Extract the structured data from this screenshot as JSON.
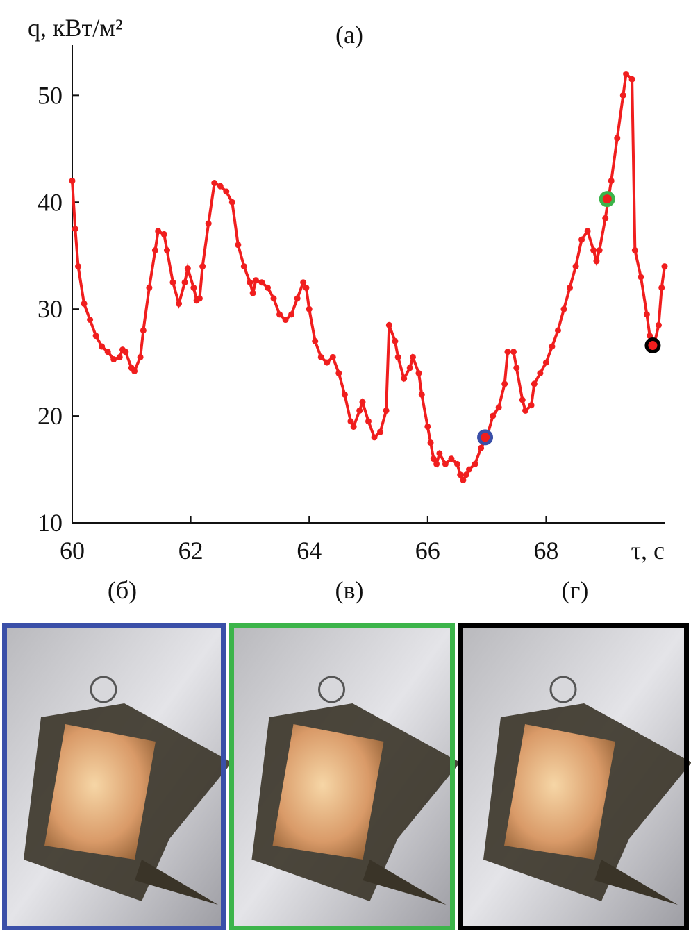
{
  "chart_data": {
    "type": "line",
    "title": "(а)",
    "y_label": "q, кВт/м²",
    "x_label": "τ, с",
    "x": [
      60.0,
      60.05,
      60.1,
      60.2,
      60.3,
      60.4,
      60.5,
      60.6,
      60.7,
      60.8,
      60.85,
      60.9,
      61.0,
      61.05,
      61.15,
      61.2,
      61.3,
      61.4,
      61.45,
      61.55,
      61.6,
      61.7,
      61.8,
      61.9,
      61.95,
      62.05,
      62.1,
      62.15,
      62.2,
      62.3,
      62.4,
      62.5,
      62.6,
      62.7,
      62.8,
      62.9,
      63.0,
      63.05,
      63.1,
      63.2,
      63.3,
      63.4,
      63.5,
      63.6,
      63.7,
      63.8,
      63.9,
      63.95,
      64.0,
      64.1,
      64.2,
      64.3,
      64.4,
      64.5,
      64.6,
      64.7,
      64.75,
      64.85,
      64.9,
      65.0,
      65.1,
      65.2,
      65.3,
      65.35,
      65.45,
      65.5,
      65.6,
      65.7,
      65.75,
      65.85,
      65.9,
      66.0,
      66.05,
      66.1,
      66.15,
      66.2,
      66.3,
      66.4,
      66.5,
      66.55,
      66.6,
      66.65,
      66.7,
      66.8,
      66.9,
      67.0,
      67.1,
      67.2,
      67.3,
      67.35,
      67.45,
      67.5,
      67.6,
      67.65,
      67.75,
      67.8,
      67.9,
      68.0,
      68.1,
      68.2,
      68.3,
      68.4,
      68.5,
      68.6,
      68.7,
      68.8,
      68.85,
      68.9,
      69.0,
      69.05,
      69.1,
      69.2,
      69.3,
      69.35,
      69.45,
      69.5,
      69.6,
      69.7,
      69.75,
      69.82,
      69.9,
      69.95,
      70.0
    ],
    "series": [
      {
        "color": "#f01e1e",
        "values": [
          42,
          37.5,
          34,
          30.5,
          29,
          27.5,
          26.5,
          26,
          25.3,
          25.5,
          26.2,
          26,
          24.5,
          24.2,
          25.5,
          28,
          32,
          35.5,
          37.3,
          37,
          35.5,
          32.5,
          30.5,
          32.5,
          33.8,
          32,
          30.8,
          31,
          34,
          38,
          41.8,
          41.5,
          41,
          40,
          36,
          34,
          32.5,
          31.5,
          32.7,
          32.5,
          32,
          31,
          29.5,
          29,
          29.5,
          31,
          32.5,
          32,
          30,
          27,
          25.5,
          25,
          25.5,
          24,
          22,
          19.5,
          19,
          20.5,
          21.3,
          19.5,
          18,
          18.5,
          20.5,
          28.5,
          27,
          25.5,
          23.5,
          24.5,
          25.5,
          24,
          22,
          19,
          17.5,
          16,
          15.5,
          16.5,
          15.5,
          16,
          15.5,
          14.5,
          14,
          14.5,
          15,
          15.5,
          17,
          18,
          20,
          20.8,
          23,
          26,
          26,
          24.5,
          21.5,
          20.5,
          21,
          23,
          24,
          25,
          26.5,
          28,
          30,
          32,
          34,
          36.5,
          37.3,
          35.5,
          34.5,
          35.5,
          38.5,
          40.3,
          42,
          46,
          50,
          52,
          51.5,
          35.5,
          33,
          29.5,
          27.5,
          26.6,
          28.5,
          32,
          34
        ]
      }
    ],
    "highlights": [
      {
        "x": 66.97,
        "y": 18.0,
        "color": "#3a4fa8"
      },
      {
        "x": 69.03,
        "y": 40.3,
        "color": "#3cb44a"
      },
      {
        "x": 69.8,
        "y": 26.6,
        "color": "#000000"
      }
    ],
    "xlim": [
      60,
      70
    ],
    "xticks": [
      60,
      62,
      64,
      66,
      68
    ],
    "ylim": [
      10,
      54.7
    ],
    "yticks": [
      10,
      20,
      30,
      40,
      50
    ],
    "panels": [
      {
        "label": "(б)",
        "color": "#3a4fa8"
      },
      {
        "label": "(в)",
        "color": "#3cb44a"
      },
      {
        "label": "(г)",
        "color": "#000000"
      }
    ]
  }
}
